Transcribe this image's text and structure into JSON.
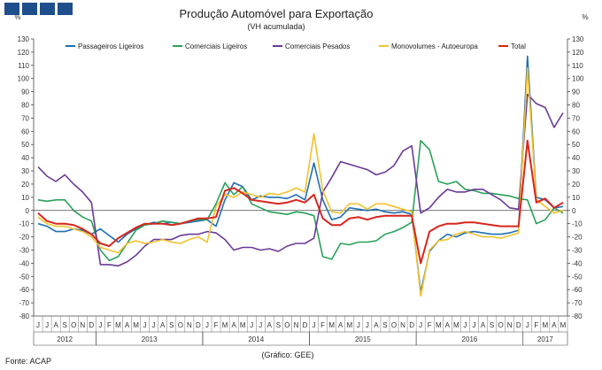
{
  "header": {
    "logo_icon": "ministry-logo-blocks"
  },
  "chart_data": {
    "type": "line",
    "title": "Produção Automóvel para Exportação",
    "subtitle": "(VH acumulada)",
    "ylabel_left": "%",
    "ylabel_right": "%",
    "ylim": [
      -80,
      130
    ],
    "ytick_step": 10,
    "grid": false,
    "legend_placement": "top",
    "source": "Fonte: ACAP",
    "credit": "(Gráfico: GEE)",
    "x": [
      "J",
      "J",
      "A",
      "S",
      "O",
      "N",
      "D",
      "J",
      "F",
      "M",
      "A",
      "M",
      "J",
      "J",
      "A",
      "S",
      "O",
      "N",
      "D",
      "J",
      "F",
      "M",
      "A",
      "M",
      "J",
      "J",
      "A",
      "S",
      "O",
      "N",
      "D",
      "J",
      "F",
      "M",
      "A",
      "M",
      "J",
      "J",
      "A",
      "S",
      "O",
      "N",
      "D",
      "J",
      "F",
      "M",
      "A",
      "M",
      "J",
      "J",
      "A",
      "S",
      "O",
      "N",
      "D",
      "J",
      "F",
      "M",
      "A",
      "M"
    ],
    "years": [
      {
        "label": "2012",
        "start": 0,
        "end": 6
      },
      {
        "label": "2013",
        "start": 7,
        "end": 18
      },
      {
        "label": "2014",
        "start": 19,
        "end": 30
      },
      {
        "label": "2015",
        "start": 31,
        "end": 42
      },
      {
        "label": "2016",
        "start": 43,
        "end": 54
      },
      {
        "label": "2017",
        "start": 55,
        "end": 59
      }
    ],
    "series": [
      {
        "name": "Passageiros Ligeiros",
        "color": "#1f6fb2",
        "values": [
          -10,
          -12,
          -16,
          -16,
          -14,
          -15,
          -18,
          -14,
          -19,
          -24,
          -18,
          -14,
          -11,
          -9,
          -10,
          -9,
          -10,
          -9,
          -8,
          -7,
          -12,
          8,
          21,
          18,
          8,
          11,
          10,
          10,
          9,
          12,
          8,
          36,
          8,
          -7,
          -5,
          2,
          1,
          0,
          1,
          -1,
          -2,
          -1,
          -3,
          -62,
          -31,
          -23,
          -18,
          -20,
          -17,
          -16,
          -17,
          -18,
          -18,
          -17,
          -15,
          117,
          10,
          8,
          2,
          3
        ]
      },
      {
        "name": "Comerciais Ligeiros",
        "color": "#2aa05a",
        "values": [
          8,
          7,
          8,
          8,
          0,
          -5,
          -8,
          -30,
          -38,
          -35,
          -25,
          -15,
          -11,
          -10,
          -8,
          -9,
          -10,
          -8,
          -7,
          -7,
          5,
          21,
          12,
          18,
          5,
          2,
          -1,
          -2,
          -3,
          -1,
          -2,
          -4,
          -35,
          -37,
          -25,
          -26,
          -24,
          -24,
          -23,
          -18,
          -16,
          -13,
          -9,
          53,
          46,
          22,
          20,
          22,
          16,
          15,
          13,
          13,
          12,
          11,
          9,
          8,
          -10,
          -7,
          2,
          -2
        ]
      },
      {
        "name": "Comerciais Pesados",
        "color": "#6a3a98",
        "values": [
          33,
          26,
          22,
          27,
          20,
          14,
          6,
          -41,
          -41,
          -42,
          -39,
          -34,
          -27,
          -22,
          -22,
          -22,
          -19,
          -18,
          -18,
          -16,
          -17,
          -22,
          -30,
          -28,
          -28,
          -30,
          -29,
          -31,
          -27,
          -25,
          -25,
          -21,
          14,
          25,
          37,
          35,
          33,
          31,
          27,
          29,
          34,
          45,
          49,
          -2,
          2,
          10,
          16,
          14,
          14,
          16,
          16,
          12,
          8,
          2,
          1,
          88,
          81,
          78,
          63,
          74
        ]
      },
      {
        "name": "Monovolumes - Autoeuropa",
        "color": "#f2c12e",
        "values": [
          -5,
          -10,
          -12,
          -12,
          -14,
          -16,
          -20,
          -28,
          -30,
          -32,
          -25,
          -23,
          -25,
          -24,
          -22,
          -24,
          -25,
          -22,
          -20,
          -24,
          3,
          12,
          10,
          14,
          12,
          10,
          13,
          12,
          14,
          17,
          14,
          58,
          15,
          -1,
          -2,
          5,
          5,
          1,
          5,
          5,
          3,
          1,
          -1,
          -65,
          -30,
          -23,
          -22,
          -18,
          -16,
          -18,
          -20,
          -20,
          -21,
          -19,
          -17,
          108,
          8,
          3,
          -2,
          0
        ]
      },
      {
        "name": "Total",
        "color": "#d7261e",
        "values": [
          -2,
          -8,
          -10,
          -10,
          -11,
          -14,
          -18,
          -25,
          -27,
          -21,
          -17,
          -13,
          -10,
          -10,
          -10,
          -11,
          -10,
          -8,
          -6,
          -6,
          -5,
          15,
          17,
          13,
          8,
          7,
          6,
          5,
          6,
          8,
          6,
          12,
          -6,
          -11,
          -11,
          -6,
          -5,
          -7,
          -5,
          -4,
          -4,
          -4,
          -4,
          -40,
          -16,
          -12,
          -10,
          -10,
          -9,
          -9,
          -10,
          -11,
          -12,
          -12,
          -12,
          53,
          6,
          9,
          2,
          6
        ]
      }
    ]
  }
}
